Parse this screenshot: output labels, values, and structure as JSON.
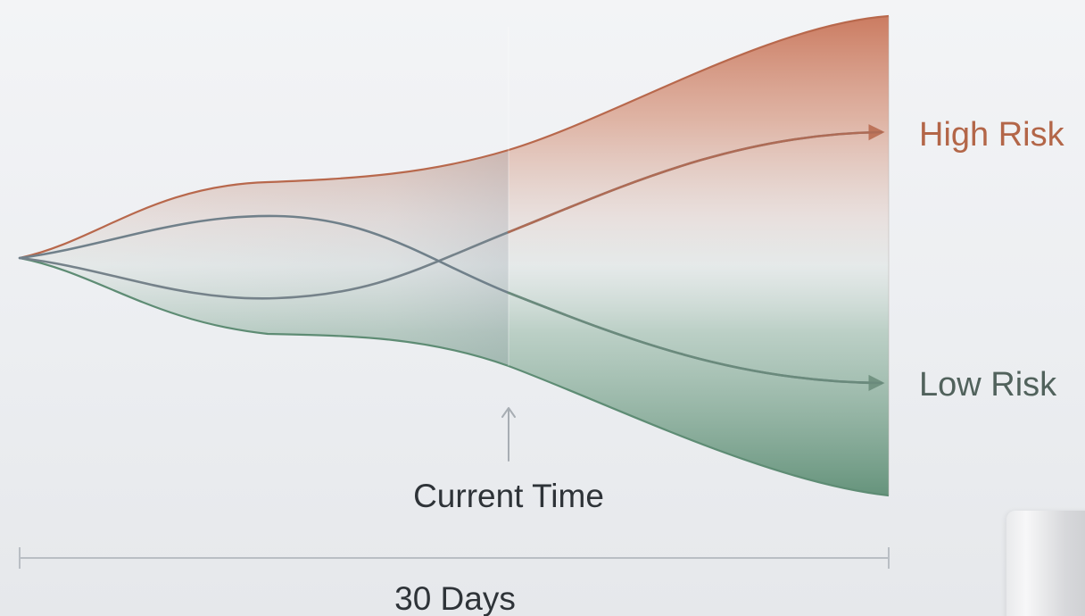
{
  "labels": {
    "high_risk": "High Risk",
    "low_risk": "Low Risk",
    "current_time": "Current Time",
    "duration": "30 Days"
  },
  "colors": {
    "high": "#b8684c",
    "low": "#5e8c74",
    "neutral_line": "#6f7d85",
    "axis": "#b9bec4",
    "text": "#2e3338",
    "high_text": "#b36648",
    "low_text": "#51625c",
    "current_marker": "#a7adb3"
  },
  "icons": {
    "current_time_arrow": "arrow-up",
    "series_arrows": "arrow-right"
  }
}
